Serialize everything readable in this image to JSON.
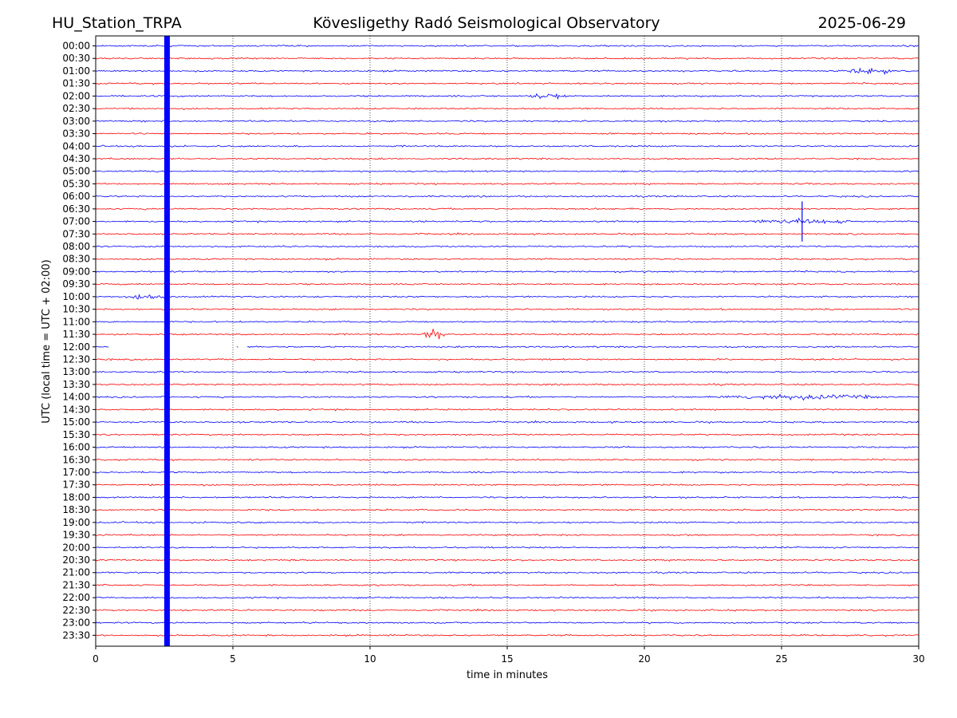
{
  "header": {
    "station": "HU_Station_TRPA",
    "observatory": "Kövesligethy Radó Seismological Observatory",
    "date": "2025-06-29"
  },
  "colors": {
    "odd_rows": "#0000ff",
    "even_rows": "#ff0000",
    "grid": "#000000"
  },
  "chart_data": {
    "type": "line",
    "subtype": "helicorder",
    "xlabel": "time in minutes",
    "ylabel": "UTC (local time = UTC + 02:00)",
    "xlim": [
      0,
      30
    ],
    "x_ticks": [
      0,
      5,
      10,
      15,
      20,
      25,
      30
    ],
    "grid": "vertical dotted at x ticks",
    "rows": [
      "00:00",
      "00:30",
      "01:00",
      "01:30",
      "02:00",
      "02:30",
      "03:00",
      "03:30",
      "04:00",
      "04:30",
      "05:00",
      "05:30",
      "06:00",
      "06:30",
      "07:00",
      "07:30",
      "08:00",
      "08:30",
      "09:00",
      "09:30",
      "10:00",
      "10:30",
      "11:00",
      "11:30",
      "12:00",
      "12:30",
      "13:00",
      "13:30",
      "14:00",
      "14:30",
      "15:00",
      "15:30",
      "16:00",
      "16:30",
      "17:00",
      "17:30",
      "18:00",
      "18:30",
      "19:00",
      "19:30",
      "20:00",
      "20:30",
      "21:00",
      "21:30",
      "22:00",
      "22:30",
      "23:00",
      "23:30"
    ],
    "row_colors": "alternating blue / red starting with blue",
    "calibration_pulse": {
      "x": 2.6,
      "span": "all rows",
      "color": "#0000ff"
    },
    "events": [
      {
        "row": "01:00",
        "x_start": 27.5,
        "x_end": 29.0,
        "amplitude": 0.35
      },
      {
        "row": "02:00",
        "x_start": 15.8,
        "x_end": 17.2,
        "amplitude": 0.35
      },
      {
        "row": "07:00",
        "x_start": 24.0,
        "x_end": 27.5,
        "amplitude": 0.25,
        "spike_x": 25.75,
        "spike_amplitude": 1.6
      },
      {
        "row": "10:00",
        "x_start": 1.3,
        "x_end": 2.5,
        "amplitude": 0.3
      },
      {
        "row": "11:30",
        "x_start": 11.9,
        "x_end": 12.8,
        "amplitude": 0.7
      },
      {
        "row": "14:00",
        "x_start": 22.8,
        "x_end": 28.5,
        "amplitude": 0.28
      }
    ],
    "gaps": [
      {
        "row": "12:00",
        "x_start": 0.5,
        "x_end": 5.1
      },
      {
        "row": "12:00",
        "x_start": 5.2,
        "x_end": 5.5
      }
    ]
  }
}
